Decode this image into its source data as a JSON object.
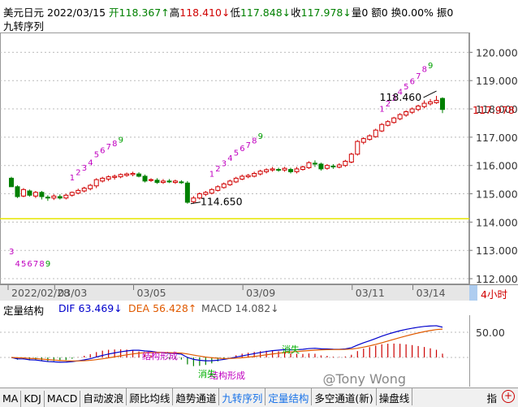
{
  "header": {
    "symbol": "美元日元",
    "date": "2022/03/15",
    "open_label": "开",
    "open_value": "118.367",
    "open_arrow": "↑",
    "high_label": "高",
    "high_value": "118.410",
    "high_arrow": "↓",
    "low_label": "低",
    "low_value": "117.848",
    "low_arrow": "↓",
    "close_label": "收",
    "close_value": "117.978",
    "close_arrow": "↓",
    "volume": "量0",
    "amount": "额0",
    "turnover": "换0.00%",
    "amplitude": "振0",
    "indicator_name": "九转序列"
  },
  "chart_data": {
    "type": "candlestick",
    "ylim": [
      111.8,
      120.7
    ],
    "yticks": [
      "120.000",
      "119.000",
      "118.000",
      "117.000",
      "116.000",
      "115.000",
      "114.000",
      "113.000",
      "112.000"
    ],
    "last_price": "117.978",
    "annotations": {
      "high_mark": "118.460",
      "low_mark": "114.650"
    },
    "candles": [
      [
        115.55,
        115.25,
        115.6,
        115.25
      ],
      [
        115.25,
        114.9,
        115.3,
        114.85
      ],
      [
        114.92,
        115.15,
        115.2,
        114.88
      ],
      [
        115.1,
        114.95,
        115.15,
        114.9
      ],
      [
        114.92,
        115.05,
        115.1,
        114.85
      ],
      [
        115.05,
        114.9,
        115.1,
        114.8
      ],
      [
        114.88,
        114.85,
        114.95,
        114.75
      ],
      [
        114.85,
        114.92,
        114.98,
        114.78
      ],
      [
        114.9,
        114.85,
        114.98,
        114.8
      ],
      [
        114.85,
        114.95,
        115.0,
        114.8
      ],
      [
        114.95,
        115.05,
        115.08,
        114.9
      ],
      [
        115.02,
        115.12,
        115.18,
        114.98
      ],
      [
        115.1,
        115.2,
        115.25,
        115.05
      ],
      [
        115.18,
        115.3,
        115.35,
        115.12
      ],
      [
        115.28,
        115.5,
        115.55,
        115.2
      ],
      [
        115.45,
        115.55,
        115.6,
        115.4
      ],
      [
        115.52,
        115.6,
        115.65,
        115.45
      ],
      [
        115.58,
        115.62,
        115.68,
        115.5
      ],
      [
        115.6,
        115.68,
        115.72,
        115.55
      ],
      [
        115.65,
        115.7,
        115.75,
        115.6
      ],
      [
        115.68,
        115.72,
        115.78,
        115.62
      ],
      [
        115.7,
        115.62,
        115.76,
        115.58
      ],
      [
        115.62,
        115.45,
        115.68,
        115.4
      ],
      [
        115.48,
        115.5,
        115.55,
        115.42
      ],
      [
        115.48,
        115.4,
        115.55,
        115.35
      ],
      [
        115.4,
        115.45,
        115.52,
        115.35
      ],
      [
        115.45,
        115.42,
        115.52,
        115.38
      ],
      [
        115.4,
        115.45,
        115.5,
        115.35
      ],
      [
        115.42,
        115.4,
        115.48,
        115.35
      ],
      [
        115.38,
        114.7,
        115.45,
        114.65
      ],
      [
        114.72,
        114.85,
        114.92,
        114.65
      ],
      [
        114.85,
        115.0,
        115.05,
        114.8
      ],
      [
        114.98,
        115.05,
        115.1,
        114.92
      ],
      [
        115.02,
        115.15,
        115.2,
        114.98
      ],
      [
        115.12,
        115.25,
        115.3,
        115.08
      ],
      [
        115.22,
        115.35,
        115.4,
        115.18
      ],
      [
        115.32,
        115.45,
        115.5,
        115.28
      ],
      [
        115.42,
        115.55,
        115.6,
        115.38
      ],
      [
        115.52,
        115.62,
        115.68,
        115.48
      ],
      [
        115.6,
        115.65,
        115.7,
        115.55
      ],
      [
        115.62,
        115.72,
        115.78,
        115.58
      ],
      [
        115.7,
        115.8,
        115.85,
        115.65
      ],
      [
        115.78,
        115.85,
        115.9,
        115.72
      ],
      [
        115.84,
        115.88,
        115.95,
        115.78
      ],
      [
        115.86,
        115.85,
        115.92,
        115.78
      ],
      [
        115.84,
        115.9,
        115.95,
        115.78
      ],
      [
        115.86,
        115.78,
        115.92,
        115.72
      ],
      [
        115.78,
        115.88,
        115.95,
        115.72
      ],
      [
        115.86,
        115.95,
        116.0,
        115.82
      ],
      [
        115.92,
        116.1,
        116.15,
        115.88
      ],
      [
        116.08,
        116.05,
        116.18,
        115.95
      ],
      [
        116.05,
        115.88,
        116.1,
        115.82
      ],
      [
        115.9,
        116.0,
        116.05,
        115.85
      ],
      [
        115.98,
        115.95,
        116.05,
        115.88
      ],
      [
        115.94,
        116.02,
        116.08,
        115.9
      ],
      [
        116.0,
        116.15,
        116.2,
        115.95
      ],
      [
        116.12,
        116.4,
        116.45,
        116.08
      ],
      [
        116.4,
        116.85,
        116.9,
        116.35
      ],
      [
        116.82,
        116.95,
        117.0,
        116.75
      ],
      [
        116.92,
        117.05,
        117.1,
        116.88
      ],
      [
        117.02,
        117.25,
        117.3,
        116.98
      ],
      [
        117.22,
        117.45,
        117.5,
        117.18
      ],
      [
        117.42,
        117.55,
        117.6,
        117.38
      ],
      [
        117.52,
        117.68,
        117.72,
        117.48
      ],
      [
        117.65,
        117.8,
        117.85,
        117.6
      ],
      [
        117.78,
        117.9,
        117.95,
        117.72
      ],
      [
        117.88,
        118.0,
        118.05,
        117.82
      ],
      [
        117.98,
        118.1,
        118.15,
        117.92
      ],
      [
        118.08,
        118.2,
        118.3,
        118.02
      ],
      [
        118.18,
        118.25,
        118.35,
        118.12
      ],
      [
        118.22,
        118.3,
        118.46,
        118.18
      ],
      [
        118.37,
        117.98,
        118.41,
        117.85
      ]
    ],
    "td_sequences": [
      {
        "labels": [
          "3",
          "4",
          "5",
          "6",
          "7",
          "8",
          "9"
        ],
        "pos": "below",
        "start": 0
      },
      {
        "labels": [
          "1",
          "2",
          "3",
          "4",
          "5",
          "6",
          "7",
          "8",
          "9"
        ],
        "pos": "above",
        "start": 10
      },
      {
        "labels": [
          "1",
          "2",
          "3",
          "4",
          "5",
          "6",
          "7",
          "8",
          "9"
        ],
        "pos": "above",
        "start": 33
      },
      {
        "labels": [
          "1",
          "2",
          "3",
          "4",
          "5",
          "6",
          "7",
          "8",
          "9"
        ],
        "pos": "above",
        "start": 61
      }
    ],
    "xticks": [
      "2022/02/28",
      "03/03",
      "03/05",
      "03/09",
      "03/11",
      "03/14"
    ],
    "period": "4小时"
  },
  "indicator": {
    "name": "定量结构",
    "dif_label": "DIF",
    "dif_value": "63.469",
    "dif_arrow": "↓",
    "dea_label": "DEA",
    "dea_value": "56.428",
    "dea_arrow": "↑",
    "macd_label": "MACD",
    "macd_value": "14.082",
    "macd_arrow": "↓",
    "ytick": "50.00",
    "labels": [
      "结构形成",
      "结构形成",
      "消失",
      "消失"
    ],
    "colors": {
      "dif": "#0000cc",
      "dea": "#e05a00",
      "pos_bar": "#cc0000",
      "neg_bar": "#008000"
    }
  },
  "tabs": [
    "MA",
    "KDJ",
    "MACD",
    "自动波浪",
    "顾比均线",
    "趋势通道",
    "九转序列",
    "定量结构",
    "多空通道(新)",
    "操盘线"
  ],
  "tab_right": "指",
  "watermark": "@Tony Wong",
  "colors": {
    "up_candle": "#d00000",
    "down_candle": "#008000",
    "td_label": "#c000c0",
    "price_tag": "#d00000"
  }
}
